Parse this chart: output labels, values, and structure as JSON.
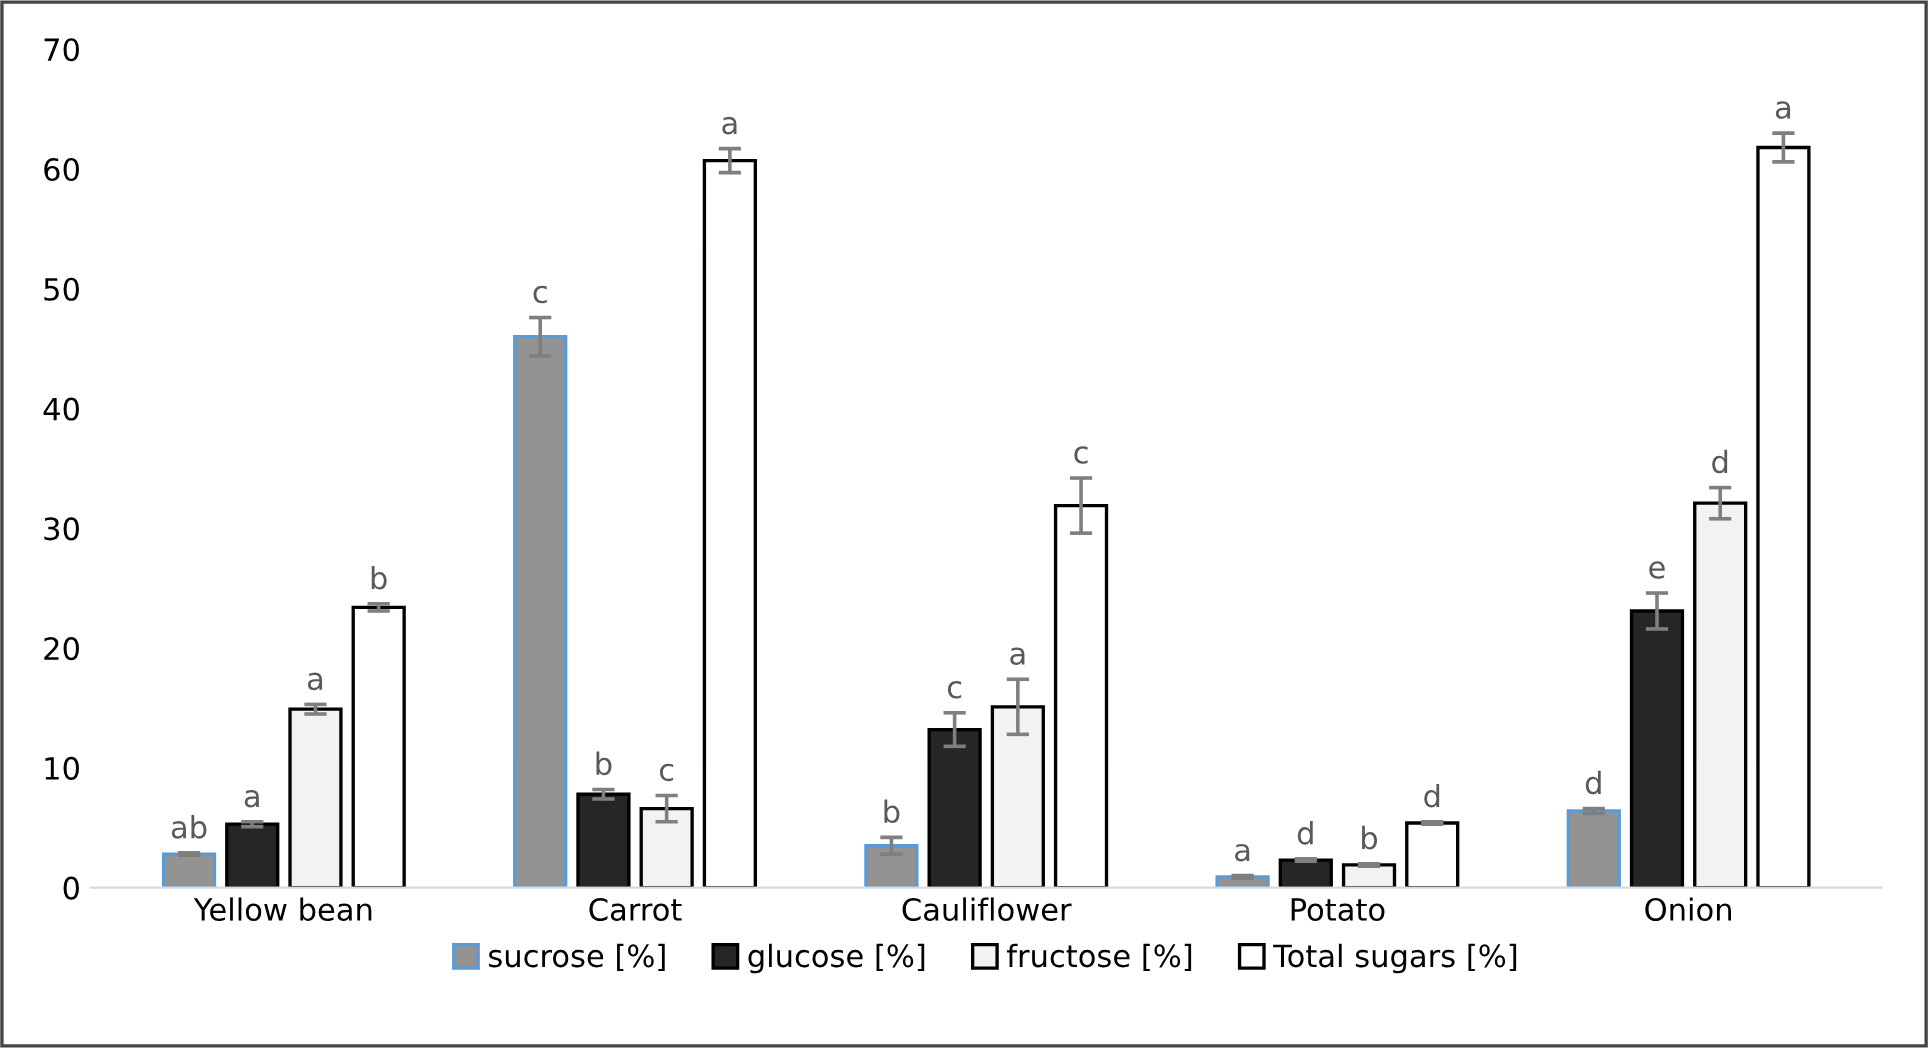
{
  "chart_data": {
    "type": "bar",
    "categories": [
      "Yellow bean",
      "Carrot",
      "Cauliflower",
      "Potato",
      "Onion"
    ],
    "series": [
      {
        "name": "sucrose [%]",
        "color": "#939393",
        "values": [
          2.8,
          46.0,
          3.5,
          0.9,
          6.4
        ],
        "errors": [
          0.1,
          1.6,
          0.7,
          0.1,
          0.2
        ],
        "value_labels": [
          "ab",
          "c",
          "b",
          "a",
          "d"
        ]
      },
      {
        "name": "glucose [%]",
        "color": "#262626",
        "values": [
          5.3,
          7.8,
          13.2,
          2.3,
          23.1
        ],
        "errors": [
          0.2,
          0.4,
          1.4,
          0.1,
          1.5
        ],
        "value_labels": [
          "a",
          "b",
          "c",
          "d",
          "e"
        ]
      },
      {
        "name": "fructose [%]",
        "color": "#f2f2f2",
        "values": [
          14.9,
          6.6,
          15.1,
          1.9,
          32.1
        ],
        "errors": [
          0.4,
          1.1,
          2.3,
          0.1,
          1.3
        ],
        "value_labels": [
          "a",
          "c",
          "a",
          "b",
          "d"
        ]
      },
      {
        "name": "Total sugars [%]",
        "color": "#ffffff",
        "values": [
          23.4,
          60.7,
          31.9,
          5.4,
          61.8
        ],
        "errors": [
          0.3,
          1.0,
          2.3,
          0.1,
          1.2
        ],
        "value_labels": [
          "b",
          "a",
          "c",
          "d",
          "a"
        ]
      }
    ],
    "ylim": [
      0,
      70
    ],
    "yticks": [
      0,
      10,
      20,
      30,
      40,
      50,
      60,
      70
    ],
    "grid": false,
    "legend": "bottom"
  }
}
